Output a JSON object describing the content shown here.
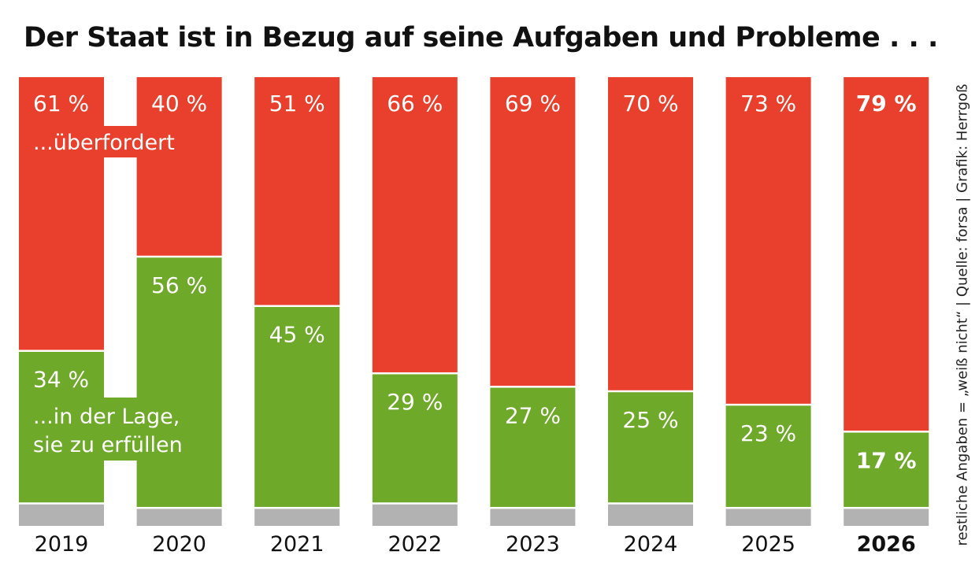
{
  "title": "Der Staat ist in Bezug auf seine Aufgaben und Probleme . . .",
  "source_note": "restliche Angaben = „weiß nicht“ | Quelle: forsa | Grafik: Herrgoß",
  "colors": {
    "overwhelmed": "#e8402c",
    "capable": "#6ea92a",
    "remainder": "#b3b2b2",
    "text_on_bar": "#ffffff",
    "axis_text": "#111111"
  },
  "chart_data": {
    "type": "bar",
    "stacked": true,
    "title": "Der Staat ist in Bezug auf seine Aufgaben und Probleme . . .",
    "categories": [
      "2019",
      "2020",
      "2021",
      "2022",
      "2023",
      "2024",
      "2025",
      "2026"
    ],
    "highlighted_category": "2026",
    "series": [
      {
        "name": "...überfordert",
        "values": [
          61,
          40,
          51,
          66,
          69,
          70,
          73,
          79
        ],
        "labels": [
          "61 %",
          "40 %",
          "51 %",
          "66 %",
          "69 %",
          "70 %",
          "73 %",
          "79 %"
        ]
      },
      {
        "name": "...in der Lage, sie zu erfüllen",
        "values": [
          34,
          56,
          45,
          29,
          27,
          25,
          23,
          17
        ],
        "labels": [
          "34 %",
          "56 %",
          "45 %",
          "29 %",
          "27 %",
          "25 %",
          "23 %",
          "17 %"
        ]
      },
      {
        "name": "restliche Angaben",
        "values": [
          5,
          4,
          4,
          5,
          4,
          5,
          4,
          4
        ]
      }
    ],
    "annotations": {
      "top_label": "...überfordert",
      "bottom_label_lines": [
        "...in der Lage,",
        "sie zu erfüllen"
      ]
    },
    "ylim": [
      0,
      100
    ],
    "xlabel": "",
    "ylabel": "",
    "grid": false
  }
}
